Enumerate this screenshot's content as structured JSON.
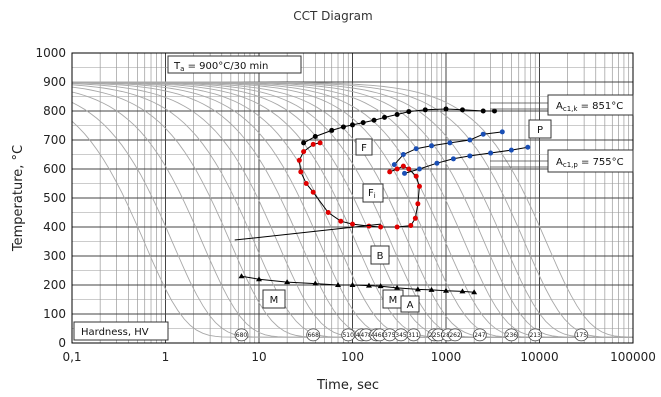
{
  "chart_data": {
    "type": "line",
    "title": "CCT Diagram",
    "xlabel": "Time, sec",
    "ylabel": "Temperature, °C",
    "x_scale": "log",
    "xlim": [
      0.1,
      100000
    ],
    "ylim": [
      0,
      1000
    ],
    "x_ticks": [
      "0,1",
      "1",
      "10",
      "100",
      "1000",
      "10000",
      "100000"
    ],
    "y_ticks": [
      "0",
      "100",
      "200",
      "300",
      "400",
      "500",
      "600",
      "700",
      "800",
      "900",
      "1000"
    ],
    "grid": true,
    "austenitizing_label": "T",
    "austenitizing_sub": "a",
    "austenitizing_value": " = 900°C/30 min",
    "ac1k": {
      "prefix": "A",
      "sub": "c1,k",
      "value": " = 851°C",
      "temperature": 851
    },
    "ac1p": {
      "prefix": "A",
      "sub": "c1,p",
      "value": " = 755°C",
      "temperature": 755
    },
    "hardness_label": "Hardness, HV",
    "phase_labels": [
      {
        "text": "F",
        "sub": ""
      },
      {
        "text": "F",
        "sub": "i"
      },
      {
        "text": "P",
        "sub": ""
      },
      {
        "text": "B",
        "sub": ""
      },
      {
        "text": "M",
        "sub": ""
      },
      {
        "text": "M",
        "sub": ""
      },
      {
        "text": "A",
        "sub": ""
      }
    ],
    "hardness_values": [
      {
        "text": "680",
        "time": 6.5
      },
      {
        "text": "668",
        "time": 38
      },
      {
        "text": "510",
        "time": 90
      },
      {
        "text": "485",
        "time": 125
      },
      {
        "text": "478",
        "time": 140
      },
      {
        "text": "483",
        "time": 180
      },
      {
        "text": "468",
        "time": 195
      },
      {
        "text": "375",
        "time": 250
      },
      {
        "text": "345",
        "time": 330
      },
      {
        "text": "311",
        "time": 450
      },
      {
        "text": "292",
        "time": 750
      },
      {
        "text": "258",
        "time": 830
      },
      {
        "text": "287",
        "time": 1050
      },
      {
        "text": "262",
        "time": 1250
      },
      {
        "text": "247",
        "time": 2300
      },
      {
        "text": "236",
        "time": 5000
      },
      {
        "text": "213",
        "time": 9000
      },
      {
        "text": "175",
        "time": 28000
      }
    ],
    "series": [
      {
        "key": "ferrite_start",
        "color": "#000000",
        "x": [
          30,
          40,
          60,
          80,
          100,
          130,
          170,
          220,
          300,
          400,
          600,
          1000,
          1500,
          2500,
          3300
        ],
        "y": [
          690,
          712,
          733,
          745,
          752,
          760,
          768,
          778,
          788,
          798,
          804,
          807,
          804,
          800,
          800
        ]
      },
      {
        "key": "ferrite_bainite_boundary",
        "color": "#e00000",
        "x": [
          45,
          38,
          30,
          27,
          28,
          32,
          38,
          55,
          75,
          100,
          150,
          200,
          300,
          420,
          470,
          500,
          520,
          480,
          400,
          350,
          300,
          250
        ],
        "y": [
          690,
          685,
          660,
          630,
          590,
          550,
          520,
          450,
          420,
          410,
          403,
          400,
          400,
          405,
          430,
          480,
          540,
          575,
          600,
          610,
          600,
          590
        ]
      },
      {
        "key": "pearlite_start",
        "color": "#1a4fb5",
        "x": [
          280,
          350,
          480,
          700,
          1100,
          1800,
          2500,
          4000
        ],
        "y": [
          615,
          650,
          670,
          680,
          690,
          700,
          720,
          728
        ]
      },
      {
        "key": "pearlite_end",
        "color": "#1a4fb5",
        "x": [
          360,
          520,
          800,
          1200,
          1800,
          3000,
          5000,
          7500
        ],
        "y": [
          585,
          600,
          620,
          635,
          645,
          655,
          665,
          675
        ]
      },
      {
        "key": "martensite_start",
        "color": "#000000",
        "x": [
          6.5,
          10,
          20,
          40,
          70,
          100,
          150,
          200,
          300,
          500,
          700,
          1000,
          1500,
          2000
        ],
        "y": [
          230,
          220,
          210,
          205,
          200,
          200,
          198,
          196,
          190,
          185,
          183,
          180,
          178,
          175
        ]
      }
    ]
  }
}
